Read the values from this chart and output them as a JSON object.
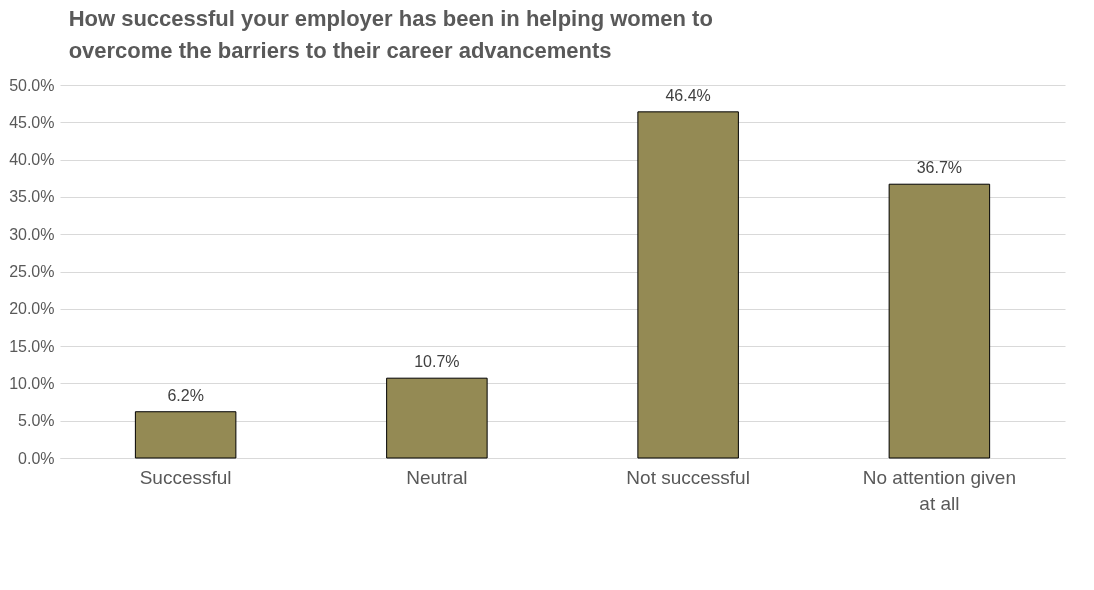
{
  "chart_data": {
    "type": "bar",
    "title": "How successful your employer has been in helping women to overcome the barriers to their career advancements",
    "categories": [
      "Successful",
      "Neutral",
      "Not successful",
      "No attention given at all"
    ],
    "values": [
      6.2,
      10.7,
      46.4,
      36.7
    ],
    "value_labels": [
      "6.2%",
      "10.7%",
      "46.4%",
      "36.7%"
    ],
    "color": "#948a54",
    "ylim": [
      0,
      50
    ],
    "yticks": [
      {
        "value": 0,
        "label": "0.0%"
      },
      {
        "value": 5,
        "label": "5.0%"
      },
      {
        "value": 10,
        "label": "10.0%"
      },
      {
        "value": 15,
        "label": "15.0%"
      },
      {
        "value": 20,
        "label": "20.0%"
      },
      {
        "value": 25,
        "label": "25.0%"
      },
      {
        "value": 30,
        "label": "30.0%"
      },
      {
        "value": 35,
        "label": "35.0%"
      },
      {
        "value": 40,
        "label": "40.0%"
      },
      {
        "value": 45,
        "label": "45.0%"
      },
      {
        "value": 50,
        "label": "50.0%"
      }
    ],
    "grid": "y"
  }
}
